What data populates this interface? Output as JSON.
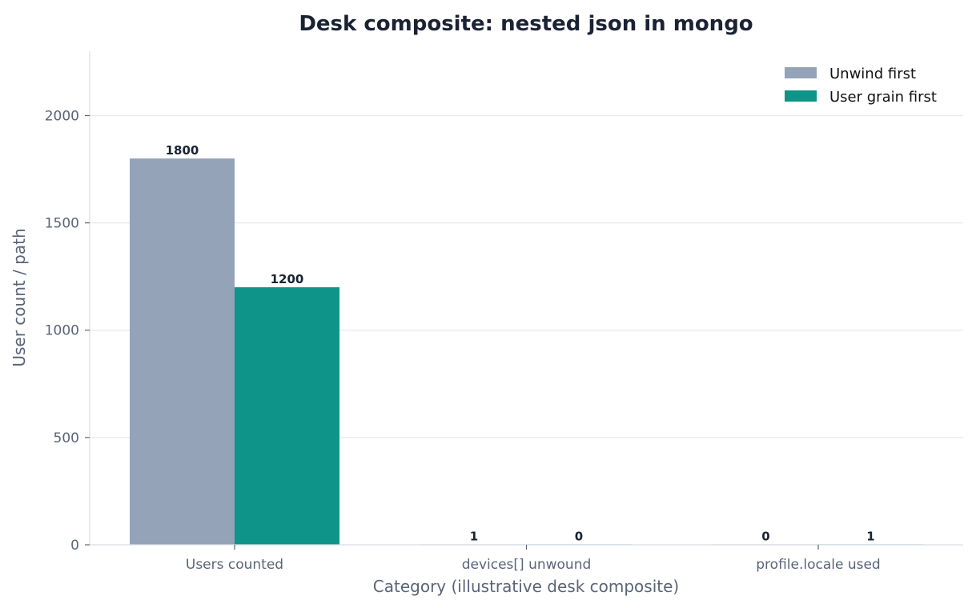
{
  "chart_data": {
    "type": "bar",
    "title": "Desk composite: nested json in mongo",
    "xlabel": "Category (illustrative desk composite)",
    "ylabel": "User count / path",
    "categories": [
      "Users counted",
      "devices[] unwound",
      "profile.locale used"
    ],
    "series": [
      {
        "name": "Unwind first",
        "values": [
          1800,
          1,
          0
        ],
        "color": "#94a3b8"
      },
      {
        "name": "User grain first",
        "values": [
          1200,
          0,
          1
        ],
        "color": "#0e9488"
      }
    ],
    "ylim": [
      0,
      2300
    ],
    "yticks": [
      0,
      500,
      1000,
      1500,
      2000
    ],
    "grid": "horizontal",
    "legend_position": "top-right",
    "text_color": "#1a2233",
    "axis_text_color": "#5a6478"
  }
}
